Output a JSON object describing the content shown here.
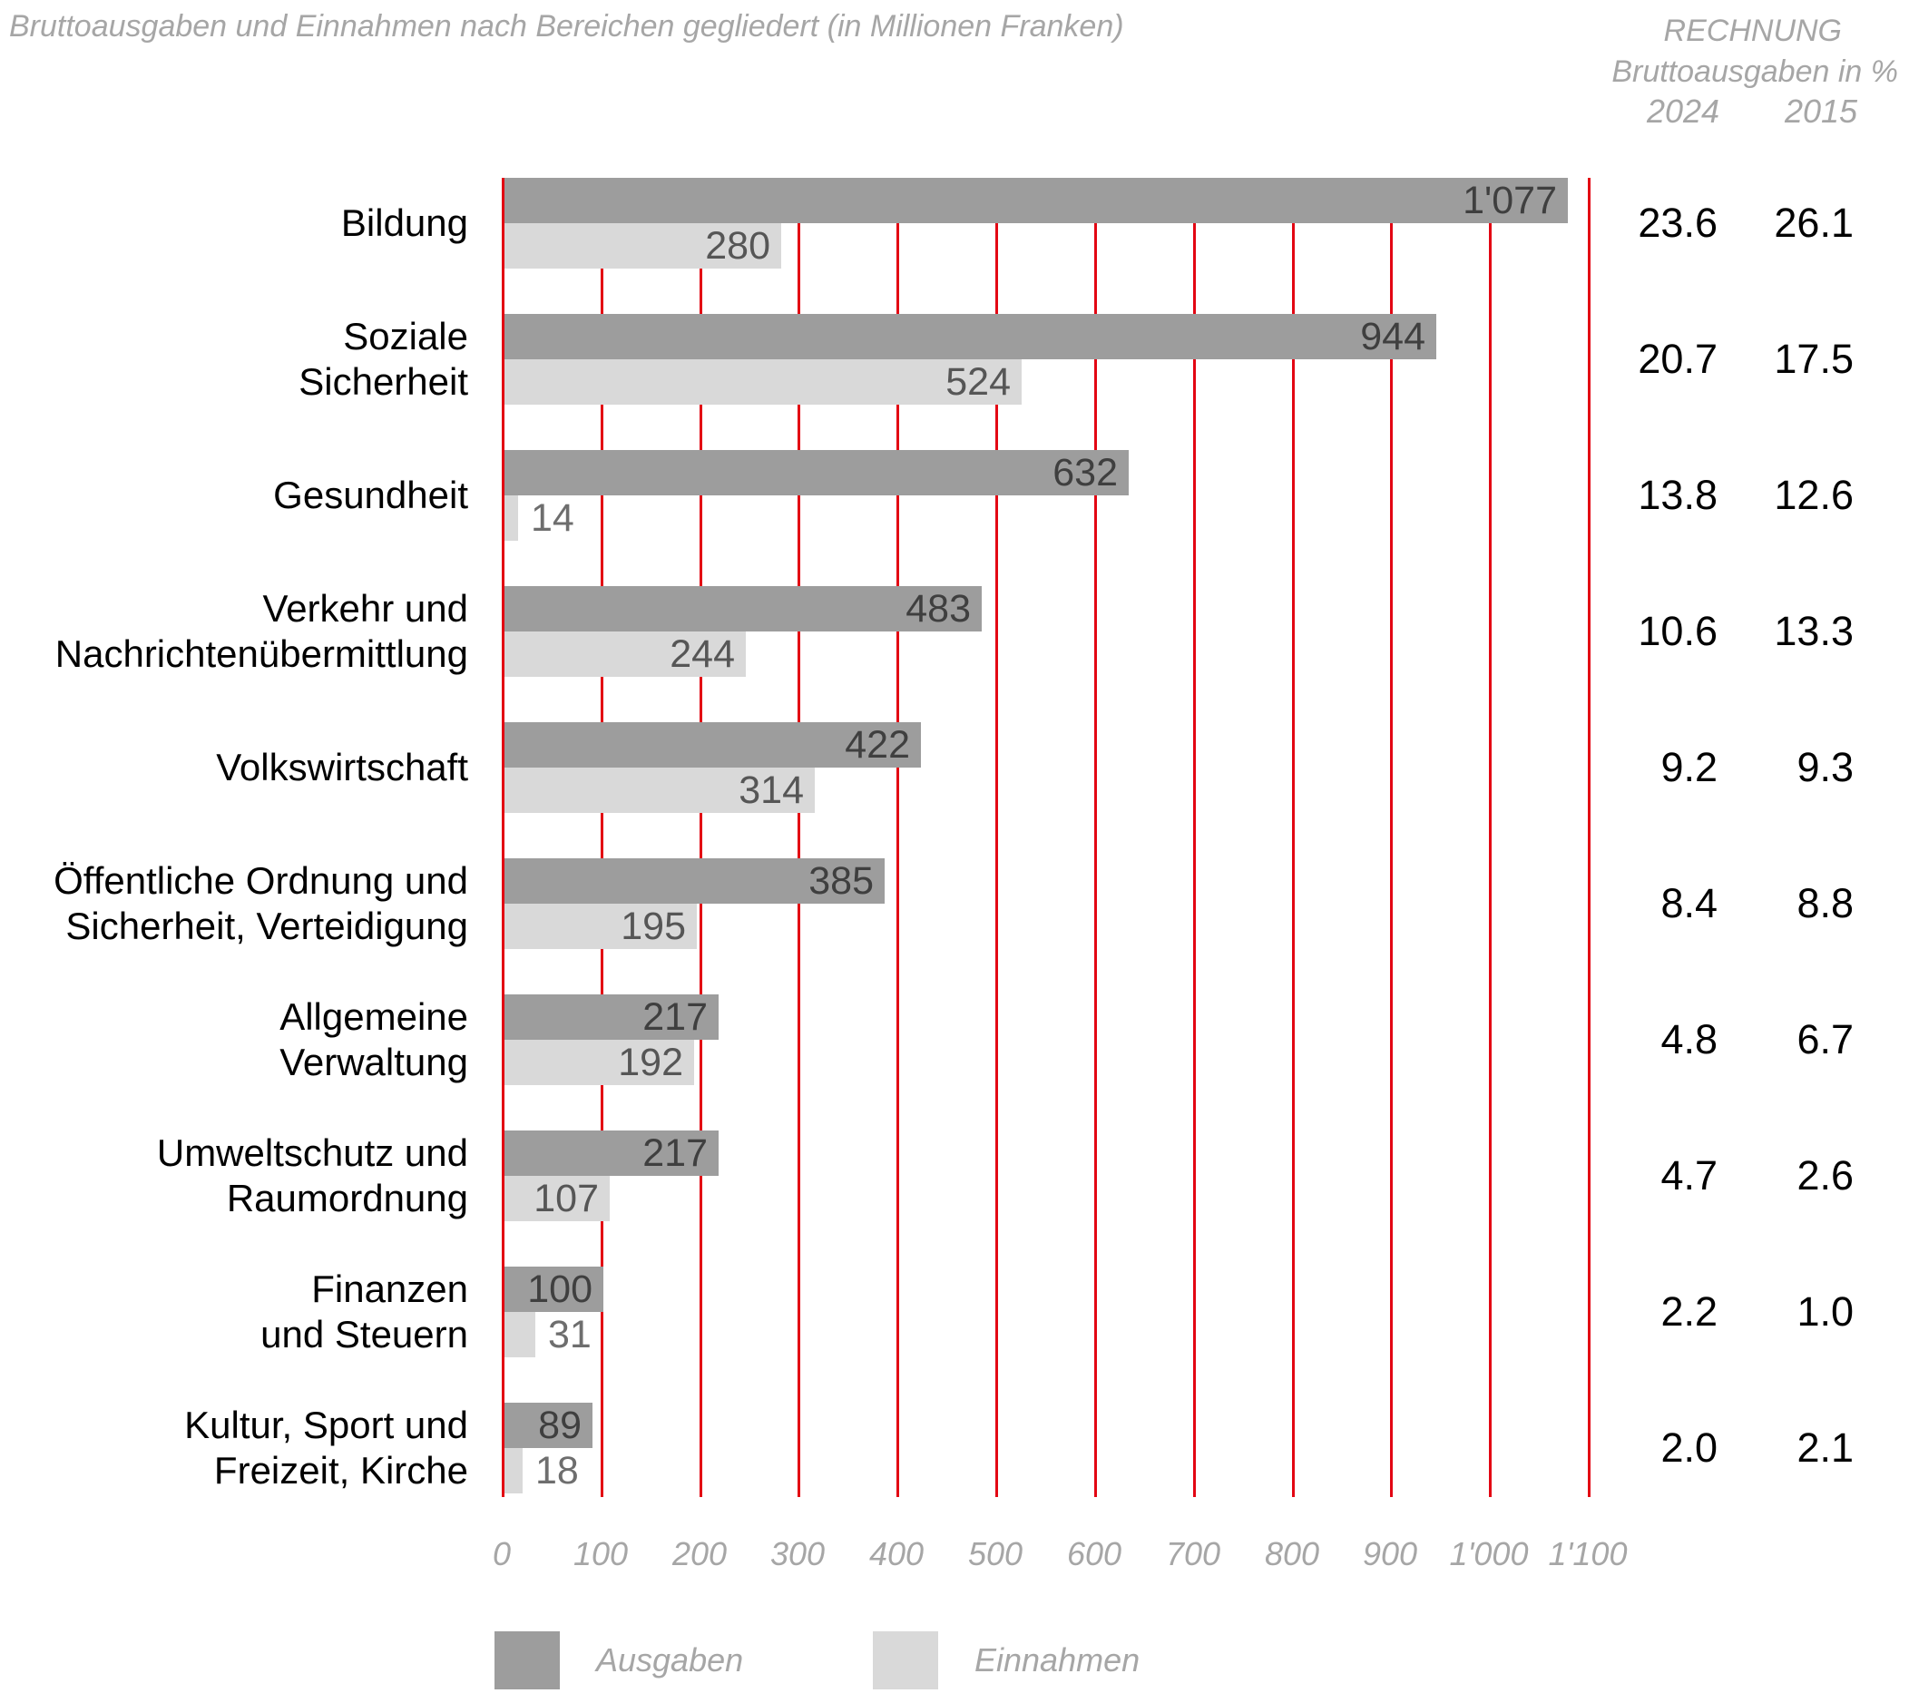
{
  "title": "Bruttoausgaben und Einnahmen nach Bereichen gegliedert (in Millionen Franken)",
  "header": {
    "line1": "RECHNUNG",
    "line2": "Bruttoausgaben in %",
    "col_2024": "2024",
    "col_2015": "2015"
  },
  "legend": [
    {
      "label": "Ausgaben",
      "color": "#9d9d9d"
    },
    {
      "label": "Einnahmen",
      "color": "#d9d9d9"
    }
  ],
  "axis": {
    "ticks": [
      "0",
      "100",
      "200",
      "300",
      "400",
      "500",
      "600",
      "700",
      "800",
      "900",
      "1'000",
      "1'100"
    ],
    "max": 1100,
    "grid_color": "#e30613"
  },
  "colors": {
    "bar_dark": "#9d9d9d",
    "bar_light": "#d9d9d9",
    "grid_red": "#e30613",
    "muted_text": "#a6a6a6",
    "value_label_dark": "#3f3f3f",
    "value_label_light": "#565656",
    "value_label_outside": "#6e6e6e"
  },
  "rows": [
    {
      "label_lines": [
        "Bildung"
      ],
      "ausgaben": 1077,
      "ausgaben_display": "1'077",
      "einnahmen": 280,
      "einnahmen_display": "280",
      "pct_2024": "23.6",
      "pct_2015": "26.1"
    },
    {
      "label_lines": [
        "Soziale",
        "Sicherheit"
      ],
      "ausgaben": 944,
      "ausgaben_display": "944",
      "einnahmen": 524,
      "einnahmen_display": "524",
      "pct_2024": "20.7",
      "pct_2015": "17.5"
    },
    {
      "label_lines": [
        "Gesundheit"
      ],
      "ausgaben": 632,
      "ausgaben_display": "632",
      "einnahmen": 14,
      "einnahmen_display": "14",
      "pct_2024": "13.8",
      "pct_2015": "12.6"
    },
    {
      "label_lines": [
        "Verkehr und",
        "Nachrichtenübermittlung"
      ],
      "ausgaben": 483,
      "ausgaben_display": "483",
      "einnahmen": 244,
      "einnahmen_display": "244",
      "pct_2024": "10.6",
      "pct_2015": "13.3"
    },
    {
      "label_lines": [
        "Volkswirtschaft"
      ],
      "ausgaben": 422,
      "ausgaben_display": "422",
      "einnahmen": 314,
      "einnahmen_display": "314",
      "pct_2024": "9.2",
      "pct_2015": "9.3"
    },
    {
      "label_lines": [
        "Öffentliche Ordnung und",
        "Sicherheit, Verteidigung"
      ],
      "ausgaben": 385,
      "ausgaben_display": "385",
      "einnahmen": 195,
      "einnahmen_display": "195",
      "pct_2024": "8.4",
      "pct_2015": "8.8"
    },
    {
      "label_lines": [
        "Allgemeine",
        "Verwaltung"
      ],
      "ausgaben": 217,
      "ausgaben_display": "217",
      "einnahmen": 192,
      "einnahmen_display": "192",
      "pct_2024": "4.8",
      "pct_2015": "6.7"
    },
    {
      "label_lines": [
        "Umweltschutz und",
        "Raumordnung"
      ],
      "ausgaben": 217,
      "ausgaben_display": "217",
      "einnahmen": 107,
      "einnahmen_display": "107",
      "pct_2024": "4.7",
      "pct_2015": "2.6"
    },
    {
      "label_lines": [
        "Finanzen",
        "und Steuern"
      ],
      "ausgaben": 100,
      "ausgaben_display": "100",
      "einnahmen": 31,
      "einnahmen_display": "31",
      "pct_2024": "2.2",
      "pct_2015": "1.0"
    },
    {
      "label_lines": [
        "Kultur, Sport und",
        "Freizeit, Kirche"
      ],
      "ausgaben": 89,
      "ausgaben_display": "89",
      "einnahmen": 18,
      "einnahmen_display": "18",
      "pct_2024": "2.0",
      "pct_2015": "2.1"
    }
  ],
  "chart_data": {
    "type": "bar",
    "orientation": "horizontal",
    "title": "Bruttoausgaben und Einnahmen nach Bereichen gegliedert (in Millionen Franken)",
    "categories": [
      "Bildung",
      "Soziale Sicherheit",
      "Gesundheit",
      "Verkehr und Nachrichtenübermittlung",
      "Volkswirtschaft",
      "Öffentliche Ordnung und Sicherheit, Verteidigung",
      "Allgemeine Verwaltung",
      "Umweltschutz und Raumordnung",
      "Finanzen und Steuern",
      "Kultur, Sport und Freizeit, Kirche"
    ],
    "series": [
      {
        "name": "Ausgaben",
        "values": [
          1077,
          944,
          632,
          483,
          422,
          385,
          217,
          217,
          100,
          89
        ]
      },
      {
        "name": "Einnahmen",
        "values": [
          280,
          524,
          14,
          244,
          314,
          195,
          192,
          107,
          31,
          18
        ]
      }
    ],
    "percent_columns": {
      "header": "RECHNUNG Bruttoausgaben in %",
      "years": [
        "2024",
        "2015"
      ],
      "values_2024": [
        23.6,
        20.7,
        13.8,
        10.6,
        9.2,
        8.4,
        4.8,
        4.7,
        2.2,
        2.0
      ],
      "values_2015": [
        26.1,
        17.5,
        12.6,
        13.3,
        9.3,
        8.8,
        6.7,
        2.6,
        1.0,
        2.1
      ]
    },
    "xlim": [
      0,
      1100
    ],
    "xticks": [
      0,
      100,
      200,
      300,
      400,
      500,
      600,
      700,
      800,
      900,
      1000,
      1100
    ],
    "grid": "vertical red gridlines every 100",
    "legend_position": "bottom",
    "unit": "Millionen Franken"
  }
}
